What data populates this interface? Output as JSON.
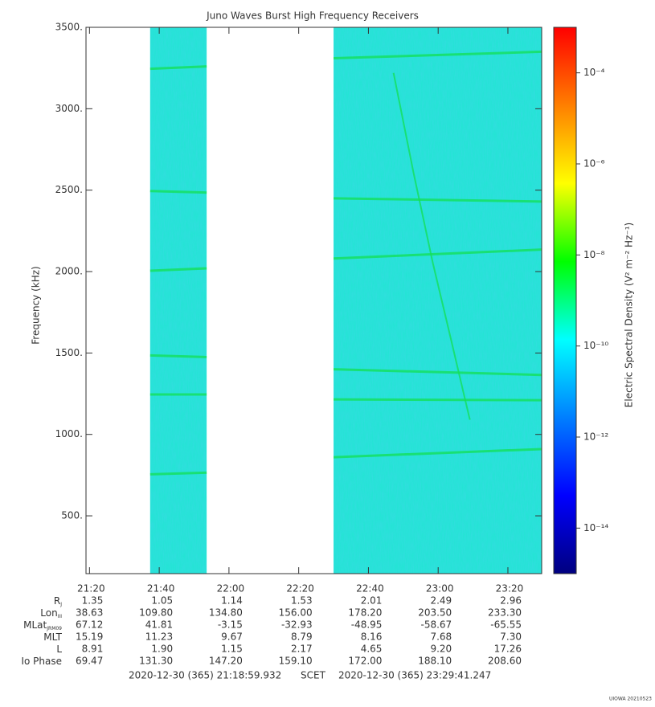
{
  "chart_data": {
    "type": "spectrogram",
    "title": "Juno Waves Burst High Frequency Receivers",
    "ylabel": "Frequency (kHz)",
    "colorbar_label": "Electric Spectral Density (V² m⁻² Hz⁻¹)",
    "xlim": [
      1278.999,
      1409.687
    ],
    "xticks": [
      {
        "value": 1280,
        "label": "21:20"
      },
      {
        "value": 1300,
        "label": "21:40"
      },
      {
        "value": 1320,
        "label": "22:00"
      },
      {
        "value": 1340,
        "label": "22:20"
      },
      {
        "value": 1360,
        "label": "22:40"
      },
      {
        "value": 1380,
        "label": "23:00"
      },
      {
        "value": 1400,
        "label": "23:20"
      }
    ],
    "ylim": [
      145,
      3500
    ],
    "yticks": [
      {
        "value": 500,
        "label": "500."
      },
      {
        "value": 1000,
        "label": "1000."
      },
      {
        "value": 1500,
        "label": "1500."
      },
      {
        "value": 2000,
        "label": "2000."
      },
      {
        "value": 2500,
        "label": "2500."
      },
      {
        "value": 3000,
        "label": "3000."
      },
      {
        "value": 3500,
        "label": "3500."
      }
    ],
    "zlim": [
      1e-15,
      0.001
    ],
    "zlog": true,
    "zticks": [
      {
        "value": 1e-14,
        "label": "10⁻¹⁴"
      },
      {
        "value": 1e-12,
        "label": "10⁻¹²"
      },
      {
        "value": 1e-10,
        "label": "10⁻¹⁰"
      },
      {
        "value": 1e-08,
        "label": "10⁻⁸"
      },
      {
        "value": 1e-06,
        "label": "10⁻⁶"
      },
      {
        "value": 0.0001,
        "label": "10⁻⁴"
      }
    ],
    "colormap": [
      "#00007f",
      "#0000ff",
      "#007fff",
      "#00ffff",
      "#00ff00",
      "#ffff00",
      "#ff7f00",
      "#ff0000"
    ],
    "background_color": "#1fe6d2",
    "line_color": "#14e05a",
    "data_segments": [
      [
        1297.4,
        1313.6
      ],
      [
        1350.0,
        1409.687
      ]
    ],
    "emission_lines": [
      {
        "x": [
          1297.4,
          1313.6
        ],
        "y": [
          3245,
          3260
        ]
      },
      {
        "x": [
          1297.4,
          1313.6
        ],
        "y": [
          2495,
          2485
        ]
      },
      {
        "x": [
          1297.4,
          1313.6
        ],
        "y": [
          2005,
          2020
        ]
      },
      {
        "x": [
          1297.4,
          1313.6
        ],
        "y": [
          1485,
          1475
        ]
      },
      {
        "x": [
          1297.4,
          1313.6
        ],
        "y": [
          1245,
          1245
        ]
      },
      {
        "x": [
          1297.4,
          1313.6
        ],
        "y": [
          755,
          765
        ]
      },
      {
        "x": [
          1350.0,
          1409.687
        ],
        "y": [
          3310,
          3350
        ]
      },
      {
        "x": [
          1350.0,
          1409.687
        ],
        "y": [
          2450,
          2430
        ]
      },
      {
        "x": [
          1350.0,
          1409.687
        ],
        "y": [
          2080,
          2135
        ]
      },
      {
        "x": [
          1350.0,
          1409.687
        ],
        "y": [
          1400,
          1365
        ]
      },
      {
        "x": [
          1350.0,
          1409.687
        ],
        "y": [
          1215,
          1210
        ]
      },
      {
        "x": [
          1350.0,
          1409.687
        ],
        "y": [
          860,
          910
        ]
      },
      {
        "x": [
          1367.2,
          1373.0,
          1378.5,
          1383.5,
          1387.0,
          1389.1
        ],
        "y": [
          3220,
          2600,
          2050,
          1600,
          1280,
          1090
        ]
      }
    ],
    "ephemeris": [
      {
        "label": {
          "main": "R",
          "sub": "J"
        },
        "values": [
          "1.35",
          "1.05",
          "1.14",
          "1.53",
          "2.01",
          "2.49",
          "2.96"
        ]
      },
      {
        "label": {
          "main": "Lon",
          "sub": "III"
        },
        "values": [
          "38.63",
          "109.80",
          "134.80",
          "156.00",
          "178.20",
          "203.50",
          "233.30"
        ]
      },
      {
        "label": {
          "main": "MLat",
          "sub": "JRM09"
        },
        "values": [
          "67.12",
          "41.81",
          "-3.15",
          "-32.93",
          "-48.95",
          "-58.67",
          "-65.55"
        ]
      },
      {
        "label": {
          "main": "MLT",
          "sub": ""
        },
        "values": [
          "15.19",
          "11.23",
          "9.67",
          "8.79",
          "8.16",
          "7.68",
          "7.30"
        ]
      },
      {
        "label": {
          "main": "L",
          "sub": ""
        },
        "values": [
          "8.91",
          "1.90",
          "1.15",
          "2.17",
          "4.65",
          "9.20",
          "17.26"
        ]
      },
      {
        "label": {
          "main": "Io Phase",
          "sub": ""
        },
        "values": [
          "69.47",
          "131.30",
          "147.20",
          "159.10",
          "172.00",
          "188.10",
          "208.60"
        ]
      }
    ],
    "start_time": "2020-12-30 (365) 21:18:59.932",
    "time_system": "SCET",
    "end_time": "2020-12-30 (365) 23:29:41.247",
    "credit": "UIOWA 20210523"
  }
}
